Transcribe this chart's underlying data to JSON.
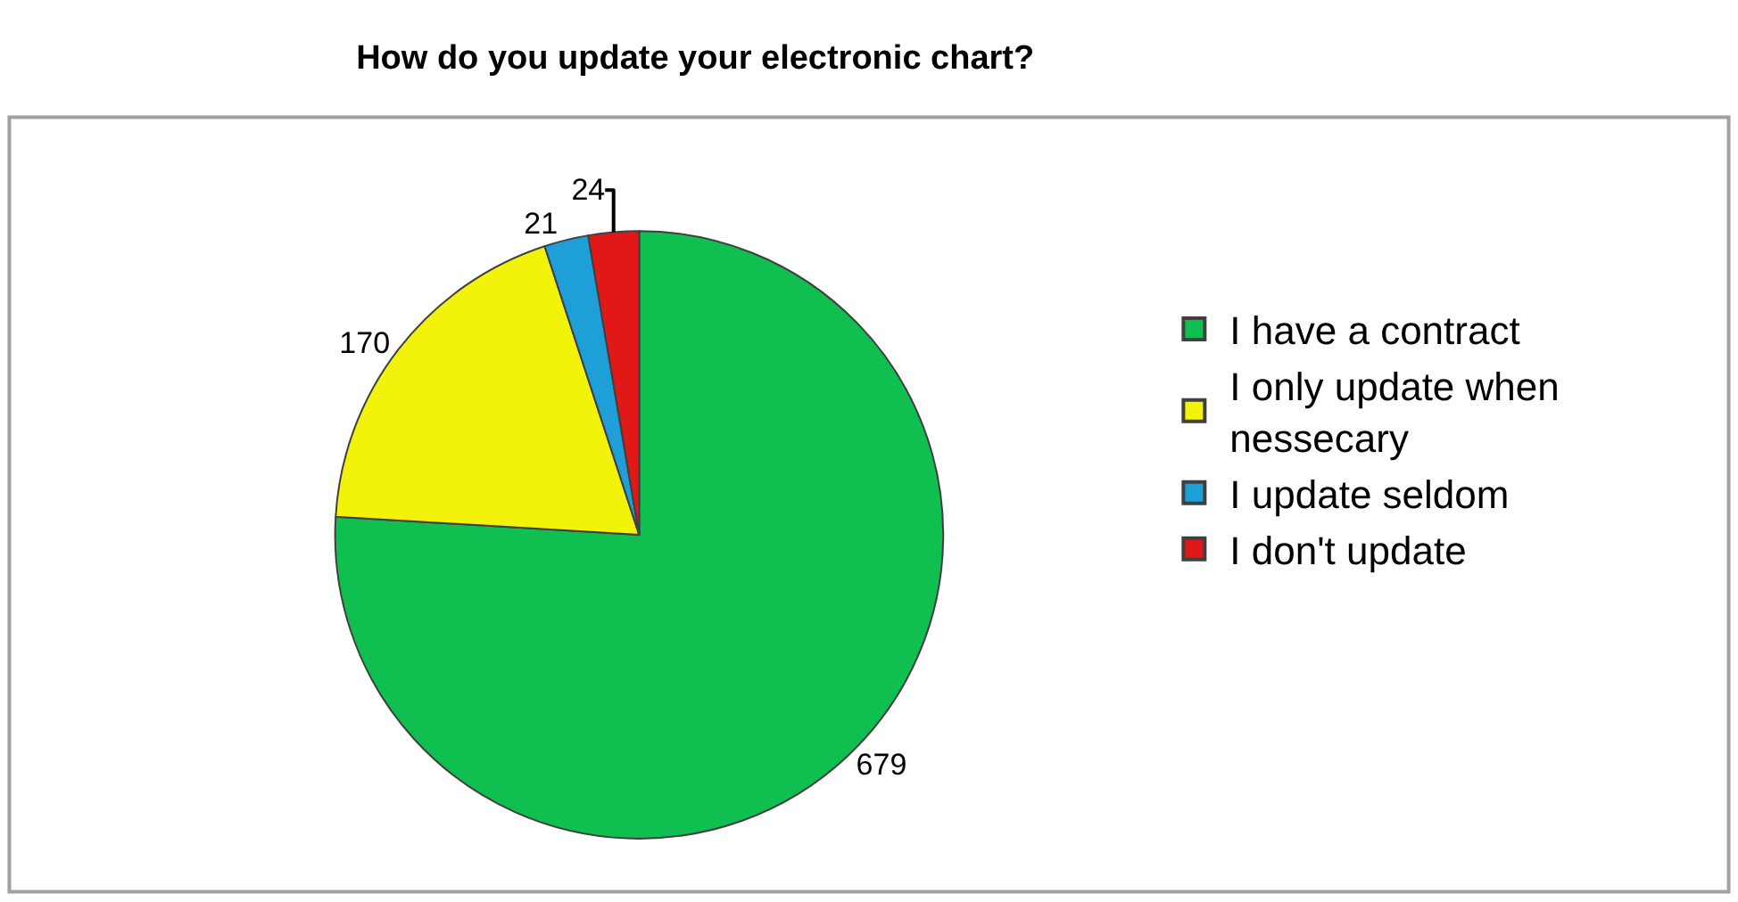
{
  "chart_data": {
    "type": "pie",
    "title": "How do you update your electronic chart?",
    "categories": [
      "I have a contract",
      "I only update when nessecary",
      "I update seldom",
      "I don't update"
    ],
    "values": [
      679,
      170,
      21,
      24
    ],
    "colors": [
      "#0fbf4f",
      "#f2f20a",
      "#1f9fd8",
      "#e01818"
    ],
    "data_labels": true,
    "legend": "right"
  }
}
